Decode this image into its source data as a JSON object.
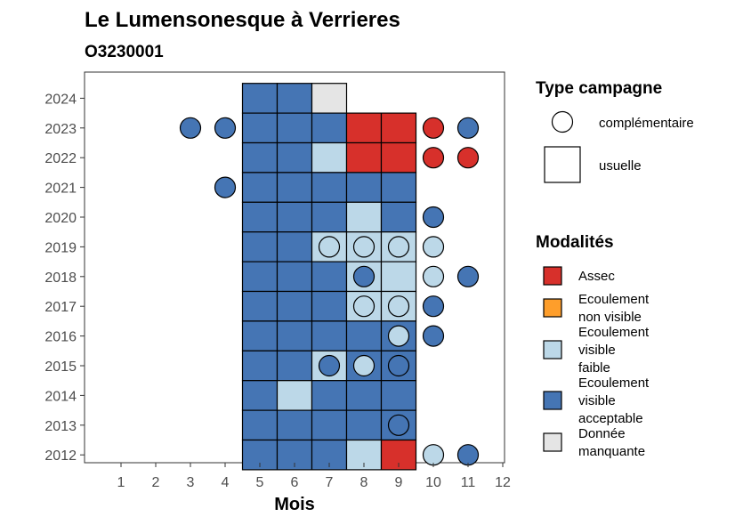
{
  "chart_data": {
    "type": "heatmap",
    "title": "Le Lumensonesque à Verrieres",
    "subtitle": "O3230001",
    "xlabel": "Mois",
    "ylabel": "",
    "x_ticks": [
      1,
      2,
      3,
      4,
      5,
      6,
      7,
      8,
      9,
      10,
      11,
      12
    ],
    "y_ticks": [
      2012,
      2013,
      2014,
      2015,
      2016,
      2017,
      2018,
      2019,
      2020,
      2021,
      2022,
      2023,
      2024
    ],
    "xlim": [
      0.5,
      12.5
    ],
    "ylim": [
      2011.5,
      2024.5
    ],
    "colors": {
      "Assec": "#d7302b",
      "Ecoulement non visible": "#fe9e2b",
      "Ecoulement visible faible": "#bcd8e8",
      "Ecoulement visible acceptable": "#4575b4",
      "Donnée manquante": "#e5e5e5"
    },
    "usuelle": [
      {
        "year": 2024,
        "month": 5,
        "mod": "Ecoulement visible acceptable"
      },
      {
        "year": 2024,
        "month": 6,
        "mod": "Ecoulement visible acceptable"
      },
      {
        "year": 2024,
        "month": 7,
        "mod": "Donnée manquante"
      },
      {
        "year": 2023,
        "month": 5,
        "mod": "Ecoulement visible acceptable"
      },
      {
        "year": 2023,
        "month": 6,
        "mod": "Ecoulement visible acceptable"
      },
      {
        "year": 2023,
        "month": 7,
        "mod": "Ecoulement visible acceptable"
      },
      {
        "year": 2023,
        "month": 8,
        "mod": "Assec"
      },
      {
        "year": 2023,
        "month": 9,
        "mod": "Assec"
      },
      {
        "year": 2022,
        "month": 5,
        "mod": "Ecoulement visible acceptable"
      },
      {
        "year": 2022,
        "month": 6,
        "mod": "Ecoulement visible acceptable"
      },
      {
        "year": 2022,
        "month": 7,
        "mod": "Ecoulement visible faible"
      },
      {
        "year": 2022,
        "month": 8,
        "mod": "Assec"
      },
      {
        "year": 2022,
        "month": 9,
        "mod": "Assec"
      },
      {
        "year": 2021,
        "month": 5,
        "mod": "Ecoulement visible acceptable"
      },
      {
        "year": 2021,
        "month": 6,
        "mod": "Ecoulement visible acceptable"
      },
      {
        "year": 2021,
        "month": 7,
        "mod": "Ecoulement visible acceptable"
      },
      {
        "year": 2021,
        "month": 8,
        "mod": "Ecoulement visible acceptable"
      },
      {
        "year": 2021,
        "month": 9,
        "mod": "Ecoulement visible acceptable"
      },
      {
        "year": 2020,
        "month": 5,
        "mod": "Ecoulement visible acceptable"
      },
      {
        "year": 2020,
        "month": 6,
        "mod": "Ecoulement visible acceptable"
      },
      {
        "year": 2020,
        "month": 7,
        "mod": "Ecoulement visible acceptable"
      },
      {
        "year": 2020,
        "month": 8,
        "mod": "Ecoulement visible faible"
      },
      {
        "year": 2020,
        "month": 9,
        "mod": "Ecoulement visible acceptable"
      },
      {
        "year": 2019,
        "month": 5,
        "mod": "Ecoulement visible acceptable"
      },
      {
        "year": 2019,
        "month": 6,
        "mod": "Ecoulement visible acceptable"
      },
      {
        "year": 2019,
        "month": 7,
        "mod": "Ecoulement visible faible"
      },
      {
        "year": 2019,
        "month": 8,
        "mod": "Ecoulement visible faible"
      },
      {
        "year": 2019,
        "month": 9,
        "mod": "Ecoulement visible faible"
      },
      {
        "year": 2018,
        "month": 5,
        "mod": "Ecoulement visible acceptable"
      },
      {
        "year": 2018,
        "month": 6,
        "mod": "Ecoulement visible acceptable"
      },
      {
        "year": 2018,
        "month": 7,
        "mod": "Ecoulement visible acceptable"
      },
      {
        "year": 2018,
        "month": 8,
        "mod": "Ecoulement visible faible"
      },
      {
        "year": 2018,
        "month": 9,
        "mod": "Ecoulement visible faible"
      },
      {
        "year": 2017,
        "month": 5,
        "mod": "Ecoulement visible acceptable"
      },
      {
        "year": 2017,
        "month": 6,
        "mod": "Ecoulement visible acceptable"
      },
      {
        "year": 2017,
        "month": 7,
        "mod": "Ecoulement visible acceptable"
      },
      {
        "year": 2017,
        "month": 8,
        "mod": "Ecoulement visible faible"
      },
      {
        "year": 2017,
        "month": 9,
        "mod": "Ecoulement visible faible"
      },
      {
        "year": 2016,
        "month": 5,
        "mod": "Ecoulement visible acceptable"
      },
      {
        "year": 2016,
        "month": 6,
        "mod": "Ecoulement visible acceptable"
      },
      {
        "year": 2016,
        "month": 7,
        "mod": "Ecoulement visible acceptable"
      },
      {
        "year": 2016,
        "month": 8,
        "mod": "Ecoulement visible acceptable"
      },
      {
        "year": 2016,
        "month": 9,
        "mod": "Ecoulement visible acceptable"
      },
      {
        "year": 2015,
        "month": 5,
        "mod": "Ecoulement visible acceptable"
      },
      {
        "year": 2015,
        "month": 6,
        "mod": "Ecoulement visible acceptable"
      },
      {
        "year": 2015,
        "month": 7,
        "mod": "Ecoulement visible faible"
      },
      {
        "year": 2015,
        "month": 8,
        "mod": "Ecoulement visible acceptable"
      },
      {
        "year": 2015,
        "month": 9,
        "mod": "Ecoulement visible acceptable"
      },
      {
        "year": 2014,
        "month": 5,
        "mod": "Ecoulement visible acceptable"
      },
      {
        "year": 2014,
        "month": 6,
        "mod": "Ecoulement visible faible"
      },
      {
        "year": 2014,
        "month": 7,
        "mod": "Ecoulement visible acceptable"
      },
      {
        "year": 2014,
        "month": 8,
        "mod": "Ecoulement visible acceptable"
      },
      {
        "year": 2014,
        "month": 9,
        "mod": "Ecoulement visible acceptable"
      },
      {
        "year": 2013,
        "month": 5,
        "mod": "Ecoulement visible acceptable"
      },
      {
        "year": 2013,
        "month": 6,
        "mod": "Ecoulement visible acceptable"
      },
      {
        "year": 2013,
        "month": 7,
        "mod": "Ecoulement visible acceptable"
      },
      {
        "year": 2013,
        "month": 8,
        "mod": "Ecoulement visible acceptable"
      },
      {
        "year": 2013,
        "month": 9,
        "mod": "Ecoulement visible acceptable"
      },
      {
        "year": 2012,
        "month": 5,
        "mod": "Ecoulement visible acceptable"
      },
      {
        "year": 2012,
        "month": 6,
        "mod": "Ecoulement visible acceptable"
      },
      {
        "year": 2012,
        "month": 7,
        "mod": "Ecoulement visible acceptable"
      },
      {
        "year": 2012,
        "month": 8,
        "mod": "Ecoulement visible faible"
      },
      {
        "year": 2012,
        "month": 9,
        "mod": "Assec"
      }
    ],
    "complementaire": [
      {
        "year": 2023,
        "month": 3,
        "mod": "Ecoulement visible acceptable"
      },
      {
        "year": 2023,
        "month": 4,
        "mod": "Ecoulement visible acceptable"
      },
      {
        "year": 2023,
        "month": 10,
        "mod": "Assec"
      },
      {
        "year": 2023,
        "month": 11,
        "mod": "Ecoulement visible acceptable"
      },
      {
        "year": 2022,
        "month": 10,
        "mod": "Assec"
      },
      {
        "year": 2022,
        "month": 11,
        "mod": "Assec"
      },
      {
        "year": 2021,
        "month": 4,
        "mod": "Ecoulement visible acceptable"
      },
      {
        "year": 2020,
        "month": 10,
        "mod": "Ecoulement visible acceptable"
      },
      {
        "year": 2019,
        "month": 7,
        "mod": "Ecoulement visible faible"
      },
      {
        "year": 2019,
        "month": 8,
        "mod": "Ecoulement visible faible"
      },
      {
        "year": 2019,
        "month": 9,
        "mod": "Ecoulement visible faible"
      },
      {
        "year": 2019,
        "month": 10,
        "mod": "Ecoulement visible faible"
      },
      {
        "year": 2018,
        "month": 8,
        "mod": "Ecoulement visible acceptable"
      },
      {
        "year": 2018,
        "month": 10,
        "mod": "Ecoulement visible faible"
      },
      {
        "year": 2018,
        "month": 11,
        "mod": "Ecoulement visible acceptable"
      },
      {
        "year": 2017,
        "month": 8,
        "mod": "Ecoulement visible faible"
      },
      {
        "year": 2017,
        "month": 9,
        "mod": "Ecoulement visible faible"
      },
      {
        "year": 2017,
        "month": 10,
        "mod": "Ecoulement visible acceptable"
      },
      {
        "year": 2016,
        "month": 9,
        "mod": "Ecoulement visible faible"
      },
      {
        "year": 2016,
        "month": 10,
        "mod": "Ecoulement visible acceptable"
      },
      {
        "year": 2015,
        "month": 7,
        "mod": "Ecoulement visible acceptable"
      },
      {
        "year": 2015,
        "month": 8,
        "mod": "Ecoulement visible faible"
      },
      {
        "year": 2015,
        "month": 9,
        "mod": "Ecoulement visible acceptable"
      },
      {
        "year": 2013,
        "month": 9,
        "mod": "Ecoulement visible acceptable"
      },
      {
        "year": 2012,
        "month": 10,
        "mod": "Ecoulement visible faible"
      },
      {
        "year": 2012,
        "month": 11,
        "mod": "Ecoulement visible acceptable"
      }
    ],
    "legend_type": {
      "title": "Type campagne",
      "items": [
        "complémentaire",
        "usuelle"
      ]
    },
    "legend_modalites": {
      "title": "Modalités",
      "items": [
        {
          "name": "Assec",
          "lines": [
            "Assec"
          ]
        },
        {
          "name": "Ecoulement non visible",
          "lines": [
            "Ecoulement",
            "non visible"
          ]
        },
        {
          "name": "Ecoulement visible faible",
          "lines": [
            "Ecoulement",
            "visible",
            "faible"
          ]
        },
        {
          "name": "Ecoulement visible acceptable",
          "lines": [
            "Ecoulement",
            "visible",
            "acceptable"
          ]
        },
        {
          "name": "Donnée manquante",
          "lines": [
            "Donnée",
            "manquante"
          ]
        }
      ]
    },
    "grid": false,
    "legend_position": "right"
  }
}
